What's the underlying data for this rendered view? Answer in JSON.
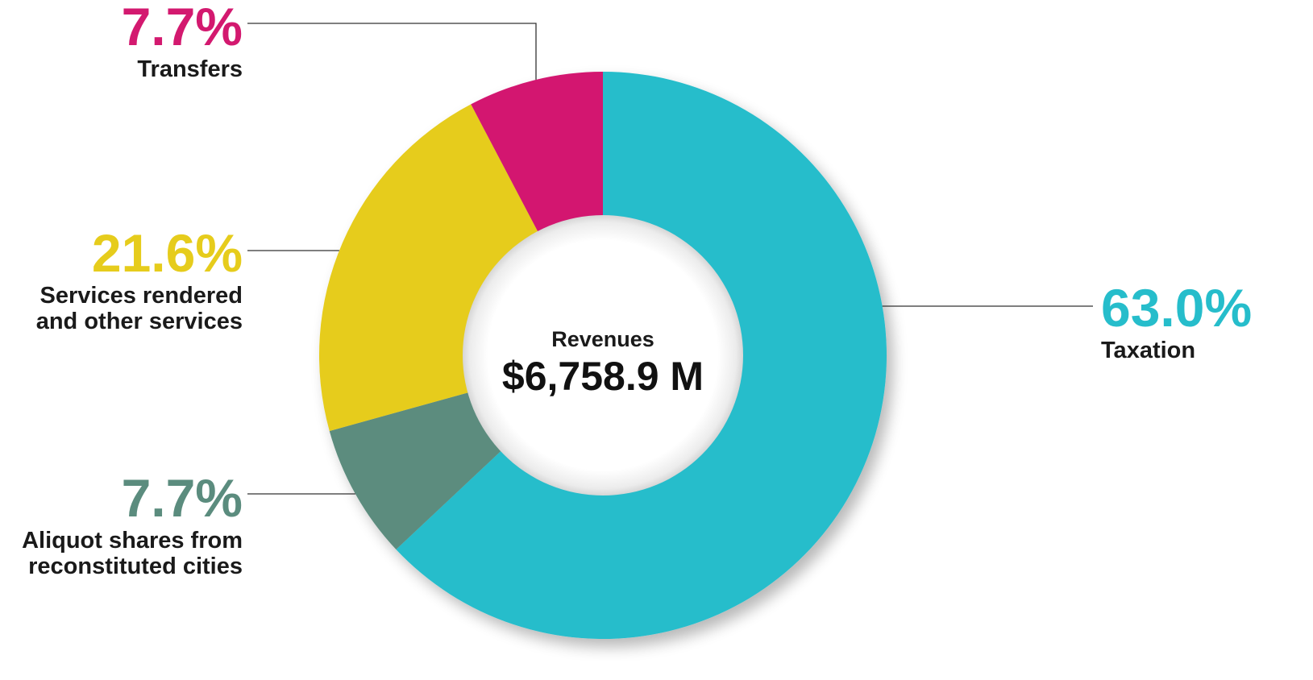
{
  "chart_data": {
    "type": "pie",
    "variant": "donut",
    "center_label": "Revenues",
    "center_value": "$6,758.9 M",
    "slices": [
      {
        "label_lines": [
          "Taxation"
        ],
        "value": 63.0,
        "value_text": "63.0%",
        "color": "#26BDCB"
      },
      {
        "label_lines": [
          "Aliquot shares from",
          "reconstituted cities"
        ],
        "value": 7.7,
        "value_text": "7.7%",
        "color": "#5B8C7E"
      },
      {
        "label_lines": [
          "Services rendered",
          "and other services"
        ],
        "value": 21.6,
        "value_text": "21.6%",
        "color": "#E6CC1C"
      },
      {
        "label_lines": [
          "Transfers"
        ],
        "value": 7.7,
        "value_text": "7.7%",
        "color": "#D3196F"
      }
    ],
    "start": "12 o'clock",
    "direction": "clockwise",
    "legend": "none"
  }
}
